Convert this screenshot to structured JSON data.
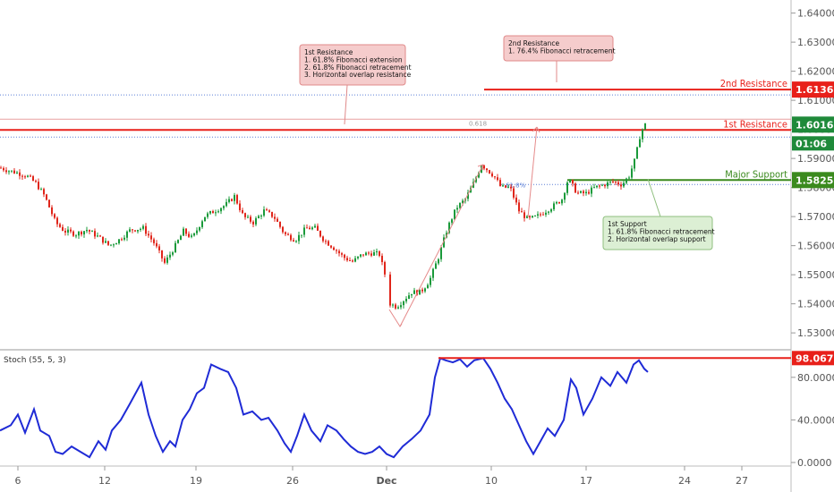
{
  "chart_data": [
    {
      "type": "candlestick",
      "ylim": [
        1.5245,
        1.6445
      ],
      "y_ticks": [
        "1.64000",
        "1.63000",
        "1.62000",
        "1.61000",
        "1.60000",
        "1.59000",
        "1.58000",
        "1.57000",
        "1.56000",
        "1.55000",
        "1.54000",
        "1.53000"
      ],
      "x_ticks": [
        "6",
        "12",
        "19",
        "26",
        "Dec",
        "10",
        "17",
        "24",
        "27"
      ],
      "fib_labels": [
        "0.618",
        "61.8%"
      ],
      "price_path": [
        [
          0,
          1.5868
        ],
        [
          10,
          1.5858
        ],
        [
          20,
          1.585
        ],
        [
          30,
          1.584
        ],
        [
          40,
          1.5815
        ],
        [
          50,
          1.577
        ],
        [
          62,
          1.568
        ],
        [
          72,
          1.565
        ],
        [
          85,
          1.564
        ],
        [
          97,
          1.5655
        ],
        [
          110,
          1.563
        ],
        [
          122,
          1.56
        ],
        [
          133,
          1.562
        ],
        [
          146,
          1.5655
        ],
        [
          160,
          1.566
        ],
        [
          172,
          1.561
        ],
        [
          184,
          1.554
        ],
        [
          196,
          1.56
        ],
        [
          205,
          1.565
        ],
        [
          215,
          1.5625
        ],
        [
          228,
          1.57
        ],
        [
          240,
          1.572
        ],
        [
          252,
          1.574
        ],
        [
          262,
          1.577
        ],
        [
          272,
          1.57
        ],
        [
          283,
          1.568
        ],
        [
          295,
          1.572
        ],
        [
          306,
          1.57
        ],
        [
          318,
          1.564
        ],
        [
          330,
          1.562
        ],
        [
          342,
          1.566
        ],
        [
          352,
          1.566
        ],
        [
          362,
          1.562
        ],
        [
          372,
          1.5595
        ],
        [
          384,
          1.556
        ],
        [
          394,
          1.5545
        ],
        [
          405,
          1.557
        ],
        [
          416,
          1.5575
        ],
        [
          424,
          1.557
        ],
        [
          432,
          1.548
        ],
        [
          436,
          1.54
        ],
        [
          443,
          1.539
        ],
        [
          450,
          1.541
        ],
        [
          460,
          1.544
        ],
        [
          470,
          1.544
        ],
        [
          480,
          1.548
        ],
        [
          490,
          1.556
        ],
        [
          500,
          1.566
        ],
        [
          510,
          1.573
        ],
        [
          520,
          1.576
        ],
        [
          530,
          1.582
        ],
        [
          538,
          1.588
        ],
        [
          545,
          1.586
        ],
        [
          552,
          1.584
        ],
        [
          560,
          1.58
        ],
        [
          570,
          1.58
        ],
        [
          580,
          1.572
        ],
        [
          590,
          1.569
        ],
        [
          600,
          1.57
        ],
        [
          610,
          1.572
        ],
        [
          620,
          1.574
        ],
        [
          628,
          1.576
        ],
        [
          635,
          1.583
        ],
        [
          645,
          1.578
        ],
        [
          655,
          1.578
        ],
        [
          665,
          1.58
        ],
        [
          675,
          1.581
        ],
        [
          685,
          1.582
        ],
        [
          695,
          1.581
        ],
        [
          703,
          1.584
        ],
        [
          710,
          1.59
        ],
        [
          716,
          1.599
        ],
        [
          721,
          1.6016
        ]
      ],
      "horizontal_lines": [
        {
          "name": "2nd Resistance",
          "value": 1.61369,
          "color": "#e8201a"
        },
        {
          "name": "1st Resistance",
          "value": 1.60164,
          "color": "#e8201a"
        },
        {
          "name": "Major Support",
          "value": 1.58256,
          "color": "#3b8a1e"
        }
      ],
      "last_price": "1.60164",
      "countdown": "01:06",
      "annotations": [
        {
          "lines": [
            "1st Resistance",
            "1. 61.8% Fibonacci extension",
            "2. 61.8% Fibonacci retracement",
            "3. Horizontal overlap resistance"
          ]
        },
        {
          "lines": [
            "2nd Resistance",
            "1. 76.4% Fibonacci retracement"
          ]
        },
        {
          "lines": [
            "1st Support",
            "1. 61.8% Fibonacci retracement",
            "2. Horizontal overlap support"
          ]
        }
      ]
    },
    {
      "type": "line",
      "title": "Stoch (55, 5, 3)",
      "ylim": [
        0,
        100
      ],
      "y_ticks": [
        "80.0000",
        "40.0000",
        "0.0000"
      ],
      "series": [
        {
          "name": "Stoch (55, 5, 3)",
          "color": "#1f2bd6"
        }
      ],
      "values": [
        [
          0,
          30
        ],
        [
          12,
          35
        ],
        [
          20,
          45
        ],
        [
          28,
          28
        ],
        [
          38,
          50
        ],
        [
          45,
          30
        ],
        [
          55,
          25
        ],
        [
          62,
          10
        ],
        [
          70,
          8
        ],
        [
          80,
          15
        ],
        [
          90,
          10
        ],
        [
          100,
          5
        ],
        [
          110,
          20
        ],
        [
          118,
          12
        ],
        [
          125,
          30
        ],
        [
          135,
          40
        ],
        [
          145,
          55
        ],
        [
          158,
          75
        ],
        [
          166,
          45
        ],
        [
          174,
          25
        ],
        [
          182,
          10
        ],
        [
          190,
          20
        ],
        [
          196,
          15
        ],
        [
          204,
          40
        ],
        [
          212,
          50
        ],
        [
          220,
          65
        ],
        [
          228,
          70
        ],
        [
          236,
          92
        ],
        [
          246,
          88
        ],
        [
          255,
          85
        ],
        [
          264,
          70
        ],
        [
          272,
          45
        ],
        [
          282,
          48
        ],
        [
          292,
          40
        ],
        [
          300,
          42
        ],
        [
          310,
          30
        ],
        [
          318,
          18
        ],
        [
          325,
          10
        ],
        [
          332,
          25
        ],
        [
          340,
          45
        ],
        [
          348,
          30
        ],
        [
          358,
          20
        ],
        [
          366,
          35
        ],
        [
          376,
          30
        ],
        [
          384,
          22
        ],
        [
          392,
          15
        ],
        [
          400,
          10
        ],
        [
          408,
          8
        ],
        [
          416,
          10
        ],
        [
          424,
          15
        ],
        [
          432,
          8
        ],
        [
          440,
          5
        ],
        [
          450,
          15
        ],
        [
          460,
          22
        ],
        [
          470,
          30
        ],
        [
          480,
          45
        ],
        [
          486,
          80
        ],
        [
          492,
          98
        ],
        [
          498,
          96
        ],
        [
          506,
          94
        ],
        [
          514,
          97
        ],
        [
          522,
          90
        ],
        [
          530,
          96
        ],
        [
          540,
          98
        ],
        [
          548,
          88
        ],
        [
          556,
          75
        ],
        [
          564,
          60
        ],
        [
          572,
          50
        ],
        [
          580,
          35
        ],
        [
          588,
          20
        ],
        [
          596,
          8
        ],
        [
          604,
          20
        ],
        [
          612,
          32
        ],
        [
          620,
          25
        ],
        [
          630,
          40
        ],
        [
          638,
          78
        ],
        [
          644,
          70
        ],
        [
          652,
          45
        ],
        [
          662,
          60
        ],
        [
          672,
          80
        ],
        [
          682,
          72
        ],
        [
          690,
          85
        ],
        [
          700,
          75
        ],
        [
          708,
          92
        ],
        [
          714,
          96
        ],
        [
          720,
          88
        ],
        [
          724,
          85
        ]
      ],
      "reference_line": {
        "value": "98.0677",
        "color": "#e8201a"
      }
    }
  ]
}
